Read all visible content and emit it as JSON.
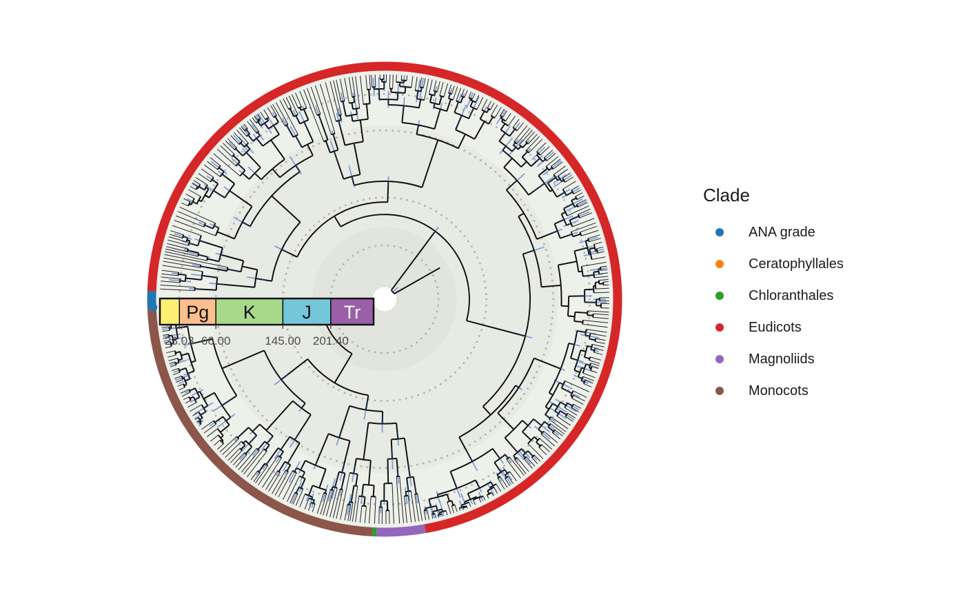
{
  "legend": {
    "title": "Clade",
    "items": [
      {
        "label": "ANA grade",
        "color": "#1f77b4"
      },
      {
        "label": "Ceratophyllales",
        "color": "#ff7f0e"
      },
      {
        "label": "Chloranthales",
        "color": "#2ca02c"
      },
      {
        "label": "Eudicots",
        "color": "#d62728"
      },
      {
        "label": "Magnoliids",
        "color": "#9467bd"
      },
      {
        "label": "Monocots",
        "color": "#8c564b"
      }
    ]
  },
  "timescale": {
    "periods": [
      {
        "label": "",
        "start": 0,
        "end": 23.03,
        "color": "#fdef74"
      },
      {
        "label": "Pg",
        "start": 23.03,
        "end": 66.0,
        "color": "#fdbf8f"
      },
      {
        "label": "K",
        "start": 66.0,
        "end": 145.0,
        "color": "#a8d98a"
      },
      {
        "label": "J",
        "start": 145.0,
        "end": 201.4,
        "color": "#74c6d9"
      },
      {
        "label": "Tr",
        "start": 201.4,
        "end": 251.9,
        "color": "#9b5fa8",
        "text_color": "#ffffff"
      }
    ],
    "ticks": [
      "23.03",
      "66.00",
      "145.00",
      "201.40"
    ]
  },
  "tree": {
    "root_age": 251.9,
    "background_color": "#e6e9e2",
    "clade_ring": [
      {
        "clade": "ANA grade",
        "color": "#1f77b4",
        "from_deg": 178,
        "to_deg": 182
      },
      {
        "clade": "Eudicots",
        "color": "#d62728",
        "from_deg": 182,
        "to_deg": 440
      },
      {
        "clade": "Magnoliids",
        "color": "#9467bd",
        "from_deg": 440,
        "to_deg": 452
      },
      {
        "clade": "Chloranthales",
        "color": "#2ca02c",
        "from_deg": 452,
        "to_deg": 453
      },
      {
        "clade": "Monocots",
        "color": "#8c564b",
        "from_deg": 453,
        "to_deg": 538
      }
    ]
  }
}
